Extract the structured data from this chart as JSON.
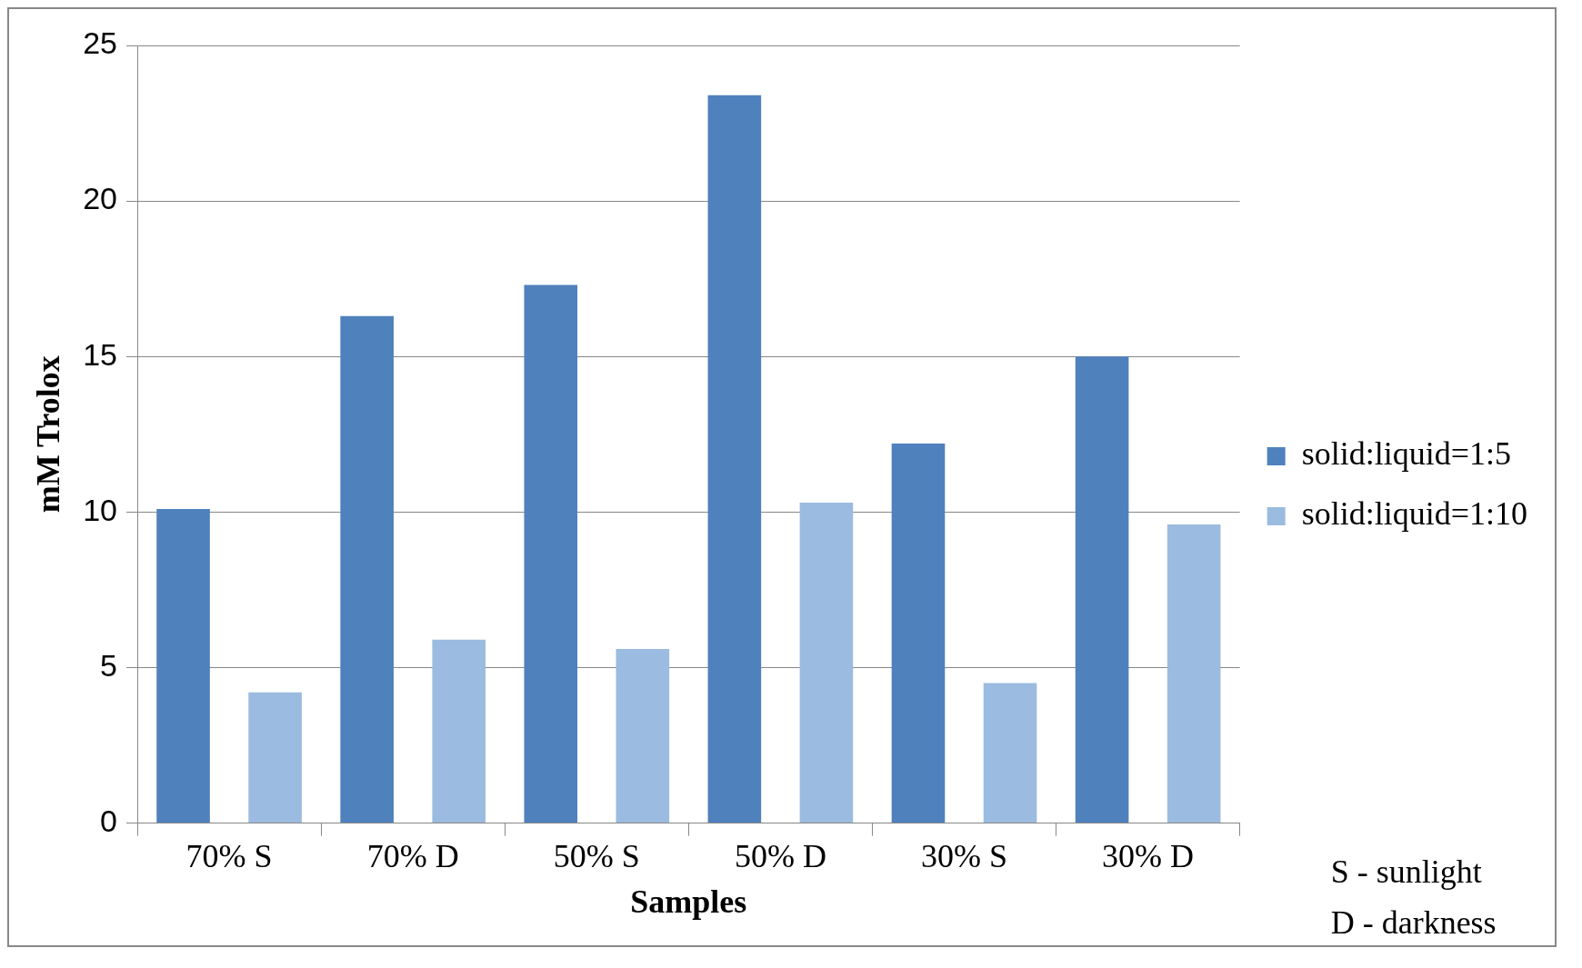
{
  "chart_data": {
    "type": "bar",
    "xlabel": "Samples",
    "ylabel": "mM Trolox",
    "categories": [
      "70% S",
      "70% D",
      "50% S",
      "50% D",
      "30% S",
      "30% D"
    ],
    "series": [
      {
        "name": "solid:liquid=1:5",
        "color": "#4f81bd",
        "values": [
          10.1,
          16.3,
          17.3,
          23.4,
          12.2,
          15.0
        ]
      },
      {
        "name": "solid:liquid=1:10",
        "color": "#9bbbe0",
        "values": [
          4.2,
          5.9,
          5.6,
          10.3,
          4.5,
          9.6
        ]
      }
    ],
    "ylim": [
      0,
      25
    ],
    "yticks": [
      0,
      5,
      10,
      15,
      20,
      25
    ],
    "grid": "y",
    "legend": "right",
    "annotations": [
      "S - sunlight",
      "D - darkness"
    ]
  }
}
